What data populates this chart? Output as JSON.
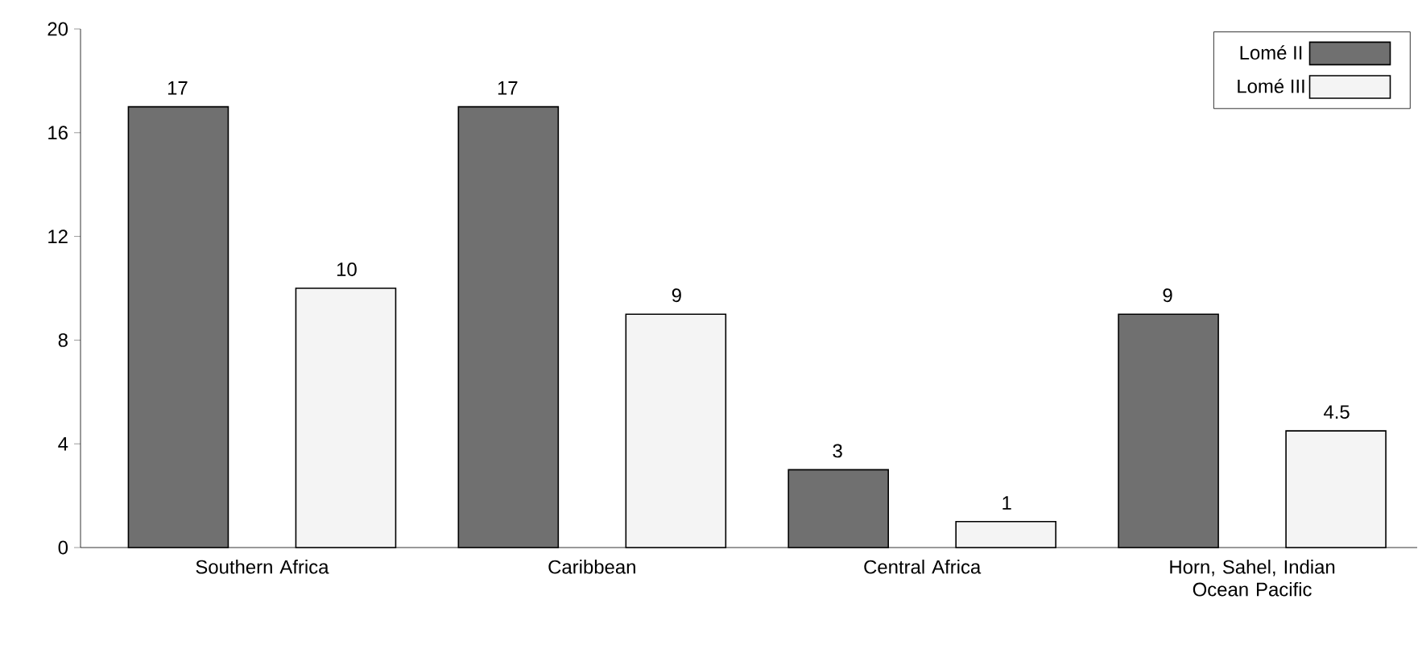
{
  "chart_data": {
    "type": "bar",
    "categories": [
      "Southern Africa",
      "Caribbean",
      "Central Africa",
      "Horn, Sahel, Indian Ocean Pacific"
    ],
    "series": [
      {
        "name": "Lomé II",
        "color": "#707070",
        "values": [
          17,
          17,
          3,
          9
        ]
      },
      {
        "name": "Lomé III",
        "color": "#f4f4f4",
        "values": [
          10,
          9,
          1,
          4.5
        ]
      }
    ],
    "ylim": [
      0,
      20
    ],
    "yticks": [
      0,
      4,
      8,
      12,
      16,
      20
    ],
    "data_labels": true,
    "legend": "top right",
    "grid": false
  }
}
